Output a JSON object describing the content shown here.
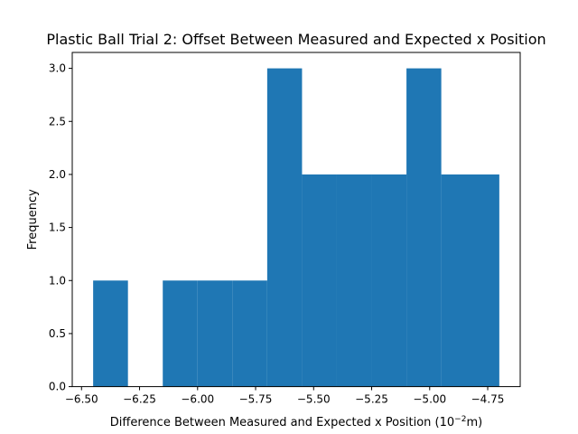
{
  "chart_data": {
    "type": "bar",
    "subtype": "histogram",
    "title": "Plastic Ball Trial 2: Offset Between Measured and Expected x Position",
    "xlabel": "Difference Between Measured and Expected x Position (10",
    "xlabel_exponent": "−2",
    "xlabel_unit": "m)",
    "ylabel": "Frequency",
    "bin_edges": [
      -6.45,
      -6.3,
      -6.15,
      -6.0,
      -5.85,
      -5.7,
      -5.55,
      -5.4,
      -5.25,
      -5.1,
      -4.95,
      -4.8
    ],
    "frequencies": [
      1,
      0,
      1,
      1,
      1,
      3,
      2,
      2,
      2,
      3,
      2
    ],
    "bin_edges_plotted": [
      -6.45,
      -6.3,
      -6.15,
      -6.0,
      -5.85,
      -5.7,
      -5.55,
      -5.4,
      -5.25,
      -5.1,
      -4.95,
      -4.7
    ],
    "xlim": [
      -6.54,
      -4.61
    ],
    "ylim": [
      0,
      3.15
    ],
    "xticks": [
      "−6.50",
      "−6.25",
      "−6.00",
      "−5.75",
      "−5.50",
      "−5.25",
      "−5.00",
      "−4.75"
    ],
    "xtick_values": [
      -6.5,
      -6.25,
      -6.0,
      -5.75,
      -5.5,
      -5.25,
      -5.0,
      -4.75
    ],
    "yticks": [
      "0.0",
      "0.5",
      "1.0",
      "1.5",
      "2.0",
      "2.5",
      "3.0"
    ],
    "ytick_values": [
      0,
      0.5,
      1.0,
      1.5,
      2.0,
      2.5,
      3.0
    ],
    "bar_color": "#1f77b4",
    "grid": false,
    "legend": "none"
  }
}
